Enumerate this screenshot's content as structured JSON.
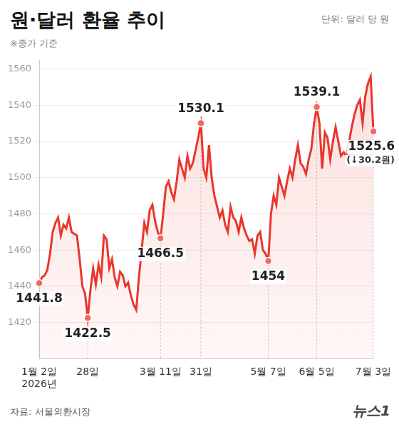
{
  "chart_data": {
    "type": "line",
    "title": "원·달러 환율 추이",
    "subtitle": "※종가 기준",
    "unit": "단위: 달러 당 원",
    "source": "자료: 서울외환시장",
    "brand": "뉴스1",
    "color": "#e8372c",
    "grid": true,
    "ylim": [
      1400,
      1565
    ],
    "yticks": [
      1420,
      1440,
      1460,
      1480,
      1500,
      1520,
      1540,
      1560
    ],
    "categories": [
      "1월 2일\n2026년",
      null,
      null,
      null,
      null,
      null,
      null,
      null,
      null,
      null,
      null,
      null,
      null,
      null,
      null,
      null,
      null,
      null,
      "28일",
      null,
      null,
      null,
      null,
      null,
      null,
      null,
      null,
      null,
      null,
      null,
      null,
      null,
      null,
      null,
      null,
      null,
      null,
      null,
      null,
      null,
      null,
      null,
      null,
      null,
      null,
      "3월 11일",
      null,
      null,
      null,
      null,
      null,
      null,
      null,
      null,
      null,
      null,
      null,
      null,
      null,
      null,
      "31일",
      null,
      null,
      null,
      null,
      null,
      null,
      null,
      null,
      null,
      null,
      null,
      null,
      null,
      null,
      null,
      null,
      null,
      null,
      null,
      null,
      null,
      null,
      null,
      null,
      "5월 7일",
      null,
      null,
      null,
      null,
      null,
      null,
      null,
      null,
      null,
      null,
      null,
      null,
      null,
      null,
      null,
      null,
      null,
      "6월 5일",
      null,
      null,
      null,
      null,
      null,
      null,
      null,
      null,
      null,
      null,
      null,
      null,
      null,
      null,
      null,
      null,
      null,
      null,
      null,
      null,
      "7월 3일"
    ],
    "values": [
      1441.8,
      1445,
      1446,
      1449,
      1458,
      1470,
      1475,
      1478,
      1468,
      1474,
      1472,
      1478,
      1470,
      1469,
      1468,
      1455,
      1440,
      1436,
      1422.5,
      1438,
      1450,
      1441,
      1452,
      1445,
      1468,
      1466,
      1450,
      1455,
      1445,
      1440,
      1448,
      1446,
      1440,
      1442,
      1435,
      1430,
      1427,
      1445,
      1460,
      1475,
      1470,
      1482,
      1485,
      1476,
      1470,
      1466.5,
      1480,
      1495,
      1498,
      1492,
      1488,
      1498,
      1510,
      1505,
      1500,
      1512,
      1505,
      1508,
      1515,
      1522,
      1530.1,
      1505,
      1500,
      1518,
      1500,
      1490,
      1484,
      1478,
      1482,
      1474,
      1470,
      1484,
      1478,
      1476,
      1470,
      1478,
      1472,
      1468,
      1465,
      1466,
      1458,
      1468,
      1470,
      1460,
      1458,
      1454,
      1480,
      1490,
      1485,
      1500,
      1495,
      1490,
      1498,
      1505,
      1500,
      1510,
      1518,
      1508,
      1506,
      1502,
      1510,
      1516,
      1530,
      1539.1,
      1530,
      1505,
      1525,
      1522,
      1510,
      1520,
      1528,
      1520,
      1512,
      1514,
      1512,
      1520,
      1528,
      1535,
      1540,
      1543,
      1530,
      1545,
      1552,
      1555.8,
      1525.6
    ],
    "annotations": [
      {
        "category": "1월 2일\n2026년",
        "text": "1441.8"
      },
      {
        "category": "28일",
        "text": "1422.5"
      },
      {
        "category": "3월 11일",
        "text": "1466.5"
      },
      {
        "category": "31일",
        "text": "1530.1"
      },
      {
        "category": "5월 7일",
        "text": "1454"
      },
      {
        "category": "6월 5일",
        "text": "1539.1"
      },
      {
        "category": "7월 3일",
        "text": "1525.6",
        "note": "(↓30.2원)"
      }
    ]
  }
}
